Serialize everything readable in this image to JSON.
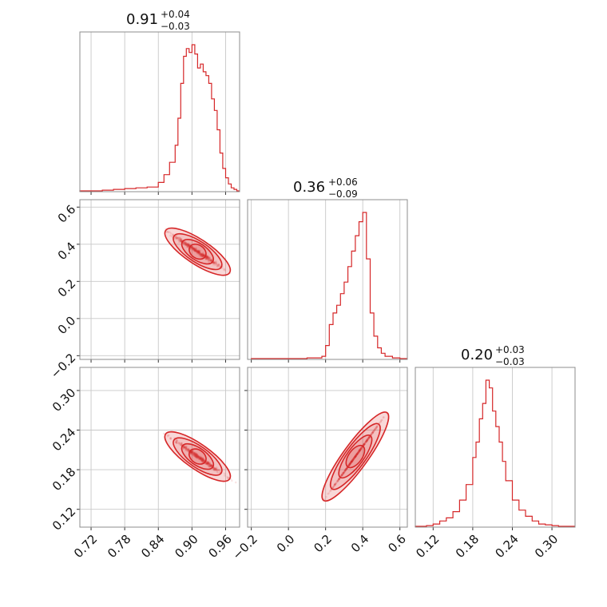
{
  "chart_data": {
    "type": "corner",
    "color": "#d62728",
    "grid": true,
    "parameters": [
      {
        "id": "p0",
        "median": "0.91",
        "plus": "+0.04",
        "minus": "−0.03",
        "range": [
          0.7,
          0.985
        ],
        "ticks": [
          "0.72",
          "0.78",
          "0.84",
          "0.90",
          "0.96"
        ],
        "tick_values": [
          0.72,
          0.78,
          0.84,
          0.9,
          0.96
        ]
      },
      {
        "id": "p1",
        "median": "0.36",
        "plus": "+0.06",
        "minus": "−0.09",
        "range": [
          -0.22,
          0.64
        ],
        "ticks": [
          "−0.2",
          "0.0",
          "0.2",
          "0.4",
          "0.6"
        ],
        "tick_values": [
          -0.2,
          0.0,
          0.2,
          0.4,
          0.6
        ]
      },
      {
        "id": "p2",
        "median": "0.20",
        "plus": "+0.03",
        "minus": "−0.03",
        "range": [
          0.093,
          0.335
        ],
        "ticks": [
          "0.12",
          "0.18",
          "0.24",
          "0.30"
        ],
        "tick_values": [
          0.12,
          0.18,
          0.24,
          0.3
        ]
      }
    ],
    "histograms": [
      {
        "param": 0,
        "x": [
          0.7,
          0.72,
          0.74,
          0.76,
          0.78,
          0.8,
          0.82,
          0.84,
          0.85,
          0.86,
          0.87,
          0.875,
          0.88,
          0.885,
          0.89,
          0.895,
          0.9,
          0.905,
          0.91,
          0.915,
          0.92,
          0.925,
          0.93,
          0.935,
          0.94,
          0.945,
          0.95,
          0.955,
          0.96,
          0.965,
          0.97,
          0.975,
          0.98
        ],
        "counts": [
          1,
          1,
          2,
          3,
          4,
          5,
          6,
          12,
          22,
          38,
          60,
          95,
          140,
          175,
          185,
          180,
          190,
          178,
          160,
          165,
          155,
          150,
          140,
          120,
          105,
          80,
          50,
          30,
          18,
          10,
          5,
          3,
          1
        ]
      },
      {
        "param": 1,
        "x": [
          -0.2,
          -0.1,
          0.0,
          0.1,
          0.18,
          0.2,
          0.22,
          0.24,
          0.26,
          0.28,
          0.3,
          0.32,
          0.34,
          0.36,
          0.38,
          0.4,
          0.42,
          0.44,
          0.46,
          0.48,
          0.5,
          0.52,
          0.56,
          0.6
        ],
        "counts": [
          1,
          1,
          1,
          2,
          4,
          18,
          45,
          60,
          70,
          85,
          100,
          120,
          140,
          160,
          178,
          190,
          130,
          60,
          30,
          15,
          8,
          4,
          2,
          1
        ]
      },
      {
        "param": 2,
        "x": [
          0.093,
          0.1,
          0.11,
          0.12,
          0.13,
          0.14,
          0.15,
          0.16,
          0.17,
          0.18,
          0.185,
          0.19,
          0.195,
          0.2,
          0.205,
          0.21,
          0.215,
          0.22,
          0.225,
          0.23,
          0.24,
          0.25,
          0.26,
          0.27,
          0.28,
          0.29,
          0.3,
          0.31,
          0.32,
          0.33
        ],
        "counts": [
          1,
          1,
          2,
          4,
          8,
          12,
          20,
          35,
          55,
          90,
          110,
          140,
          160,
          190,
          180,
          150,
          130,
          110,
          85,
          60,
          35,
          22,
          14,
          8,
          4,
          3,
          2,
          1,
          1,
          1
        ]
      }
    ],
    "pairs": [
      {
        "x_param": 0,
        "y_param": 1,
        "center": [
          0.91,
          0.36
        ],
        "major_dir": [
          0.03,
          -0.06
        ],
        "minor_scale": 0.012
      },
      {
        "x_param": 0,
        "y_param": 2,
        "center": [
          0.91,
          0.2
        ],
        "major_dir": [
          0.03,
          -0.018
        ],
        "minor_scale": 0.012
      },
      {
        "x_param": 1,
        "y_param": 2,
        "center": [
          0.36,
          0.2
        ],
        "major_dir": [
          0.09,
          0.035
        ],
        "minor_scale": 0.012
      }
    ]
  }
}
